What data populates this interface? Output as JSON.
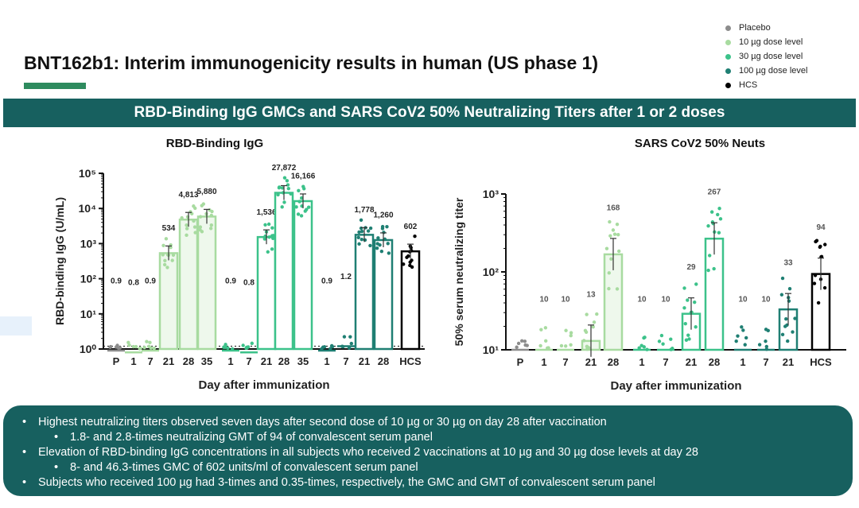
{
  "header": {
    "title": "BNT162b1:  Interim immunogenicity results in human (US phase 1)",
    "banner": "RBD-Binding IgG GMCs and SARS CoV2 50% Neutralizing Titers after 1 or 2 doses"
  },
  "legend": [
    {
      "label": "Placebo",
      "color": "#8c8c8c"
    },
    {
      "label": "10 µg dose level",
      "color": "#a8dba0"
    },
    {
      "label": "30 µg dose level",
      "color": "#3cc28a"
    },
    {
      "label": "100 µg dose level",
      "color": "#1f7f73"
    },
    {
      "label": "HCS",
      "color": "#000000"
    }
  ],
  "chart_data": [
    {
      "type": "bar",
      "title": "RBD-Binding IgG",
      "ylabel": "RBD-binding IgG (U/mL)",
      "xlabel": "Day after immunization",
      "yscale": "log",
      "ylim": [
        1,
        100000
      ],
      "yticks": [
        "10⁰",
        "10¹",
        "10²",
        "10³",
        "10⁴",
        "10⁵"
      ],
      "reference_line": 1.2,
      "categories": [
        "P",
        "1",
        "7",
        "21",
        "28",
        "35",
        "1",
        "7",
        "21",
        "28",
        "35",
        "1",
        "7",
        "21",
        "28",
        "HCS"
      ],
      "groups": [
        "Placebo",
        "10 µg",
        "10 µg",
        "10 µg",
        "10 µg",
        "10 µg",
        "30 µg",
        "30 µg",
        "30 µg",
        "30 µg",
        "30 µg",
        "100 µg",
        "100 µg",
        "100 µg",
        "100 µg",
        "HCS"
      ],
      "values": [
        0.9,
        0.8,
        0.9,
        534,
        4813,
        5880,
        0.9,
        0.8,
        1536,
        27872,
        16166,
        0.9,
        1.2,
        1778,
        1260,
        602
      ],
      "value_labels": [
        "0.9",
        "0.8",
        "0.9",
        "534",
        "4,813",
        "5,880",
        "0.9",
        "0.8",
        "1,536",
        "27,872",
        "16,166",
        "0.9",
        "1.2",
        "1,778",
        "1,260",
        "602"
      ]
    },
    {
      "type": "bar",
      "title": "SARS CoV2 50% Neuts",
      "ylabel": "50% serum neutralizing titer",
      "xlabel": "Day after immunization",
      "yscale": "log",
      "ylim": [
        10,
        1000
      ],
      "yticks": [
        "10¹",
        "10²",
        "10³"
      ],
      "categories": [
        "P",
        "1",
        "7",
        "21",
        "28",
        "1",
        "7",
        "21",
        "28",
        "1",
        "7",
        "21",
        "HCS"
      ],
      "groups": [
        "Placebo",
        "10 µg",
        "10 µg",
        "10 µg",
        "10 µg",
        "30 µg",
        "30 µg",
        "30 µg",
        "30 µg",
        "100 µg",
        "100 µg",
        "100 µg",
        "HCS"
      ],
      "values": [
        10,
        10,
        10,
        13,
        168,
        10,
        10,
        29,
        267,
        10,
        10,
        33,
        94
      ],
      "value_labels": [
        "",
        "10",
        "10",
        "13",
        "168",
        "10",
        "10",
        "29",
        "267",
        "10",
        "10",
        "33",
        "94"
      ]
    }
  ],
  "notes": [
    {
      "level": 0,
      "text": "Highest neutralizing titers observed seven days after second dose of 10 µg or 30 µg on day 28 after vaccination"
    },
    {
      "level": 1,
      "text": "1.8- and 2.8-times neutralizing GMT of 94 of convalescent serum panel"
    },
    {
      "level": 0,
      "text": "Elevation of RBD-binding IgG concentrations in all subjects who received 2 vaccinations at 10 µg and 30 µg dose levels at day 28"
    },
    {
      "level": 1,
      "text": "8- and 46.3-times GMC of 602 units/ml of convalescent serum panel"
    },
    {
      "level": 0,
      "text": "Subjects who received 100 µg had 3-times and 0.35-times, respectively, the GMC and GMT of convalescent serum panel"
    }
  ]
}
